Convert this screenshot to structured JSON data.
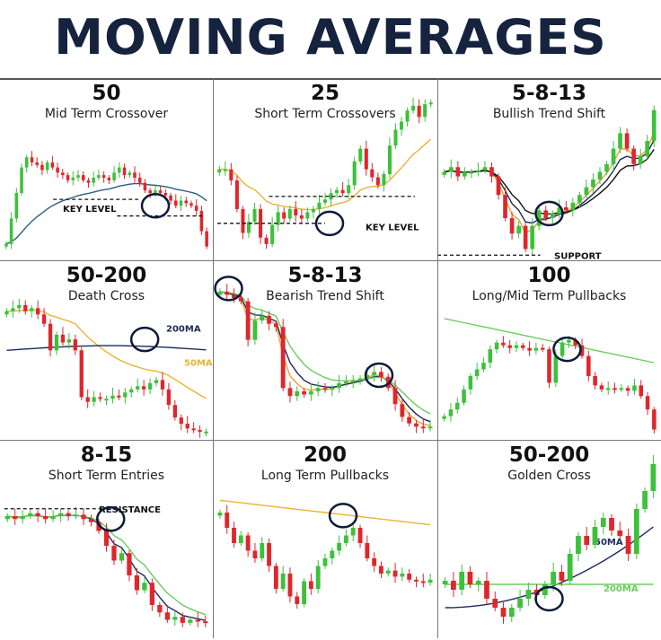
{
  "title": "MOVING AVERAGES",
  "colors": {
    "bull": "#3cc13b",
    "bear": "#e0262b",
    "navy": "#1b2a5e",
    "gold": "#e9b434",
    "green": "#6ccb5f",
    "blue": "#2b5f80",
    "orange": "#f0a030",
    "black": "#111111"
  },
  "chart_data": [
    {
      "type": "candlestick",
      "heading": "50",
      "subtitle": "Mid Term Crossover",
      "moving_averages": [
        "50"
      ],
      "annotations": [
        "KEY LEVEL"
      ],
      "closes": [
        10,
        30,
        50,
        70,
        78,
        74,
        72,
        68,
        74,
        70,
        66,
        64,
        60,
        62,
        64,
        60,
        58,
        62,
        64,
        62,
        60,
        66,
        70,
        64,
        66,
        62,
        58,
        52,
        50,
        52,
        50,
        48,
        44,
        40,
        44,
        42,
        40,
        36,
        20,
        8
      ]
    },
    {
      "type": "candlestick",
      "heading": "25",
      "subtitle": "Short Term Crossovers",
      "moving_averages": [
        "25"
      ],
      "annotations": [
        "KEY LEVEL"
      ],
      "closes": [
        55,
        55,
        48,
        30,
        15,
        22,
        30,
        12,
        8,
        20,
        28,
        24,
        30,
        26,
        24,
        28,
        30,
        34,
        36,
        40,
        42,
        40,
        45,
        60,
        68,
        55,
        50,
        45,
        52,
        70,
        80,
        85,
        92,
        95,
        88,
        96,
        97
      ]
    },
    {
      "type": "candlestick",
      "heading": "5-8-13",
      "subtitle": "Bullish Trend Shift",
      "moving_averages": [
        "5",
        "8",
        "13"
      ],
      "annotations": [
        "SUPPORT"
      ],
      "closes": [
        55,
        58,
        52,
        55,
        55,
        56,
        58,
        52,
        40,
        25,
        15,
        20,
        5,
        20,
        30,
        25,
        28,
        32,
        30,
        35,
        40,
        45,
        50,
        55,
        60,
        70,
        80,
        70,
        60,
        65,
        75,
        95
      ]
    },
    {
      "type": "candlestick",
      "heading": "50-200",
      "subtitle": "Death Cross",
      "moving_averages": [
        "50MA",
        "200MA"
      ],
      "annotations": [
        "200MA",
        "50MA"
      ],
      "closes": [
        80,
        82,
        84,
        80,
        82,
        78,
        72,
        55,
        65,
        60,
        62,
        55,
        25,
        22,
        25,
        24,
        24,
        26,
        25,
        28,
        30,
        32,
        30,
        34,
        36,
        30,
        20,
        12,
        8,
        5,
        4,
        3,
        3
      ]
    },
    {
      "type": "candlestick",
      "heading": "5-8-13",
      "subtitle": "Bearish Trend Shift",
      "moving_averages": [
        "5",
        "8",
        "13"
      ],
      "annotations": [],
      "closes": [
        90,
        88,
        86,
        84,
        60,
        72,
        75,
        70,
        68,
        30,
        25,
        28,
        26,
        28,
        30,
        29,
        30,
        33,
        34,
        35,
        36,
        38,
        40,
        37,
        30,
        20,
        12,
        8,
        6,
        5,
        6
      ]
    },
    {
      "type": "candlestick",
      "heading": "100",
      "subtitle": "Long/Mid Term Pullbacks",
      "moving_averages": [
        "100"
      ],
      "annotations": [],
      "closes": [
        15,
        20,
        25,
        35,
        45,
        50,
        55,
        65,
        70,
        68,
        66,
        68,
        66,
        64,
        66,
        65,
        40,
        60,
        70,
        72,
        68,
        60,
        45,
        38,
        35,
        36,
        35,
        36,
        34,
        38,
        30,
        20,
        5
      ]
    },
    {
      "type": "candlestick",
      "heading": "8-15",
      "subtitle": "Short Term Entries",
      "moving_averages": [
        "8",
        "15"
      ],
      "annotations": [
        "RESISTANCE"
      ],
      "closes": [
        80,
        78,
        80,
        82,
        80,
        78,
        80,
        82,
        80,
        81,
        78,
        76,
        70,
        60,
        50,
        55,
        40,
        30,
        35,
        20,
        15,
        10,
        12,
        8,
        10,
        9,
        8
      ]
    },
    {
      "type": "candlestick",
      "heading": "200",
      "subtitle": "Long Term Pullbacks",
      "moving_averages": [
        "200"
      ],
      "annotations": [],
      "closes": [
        80,
        70,
        60,
        65,
        55,
        50,
        60,
        45,
        30,
        40,
        25,
        20,
        35,
        30,
        45,
        50,
        55,
        60,
        65,
        70,
        60,
        50,
        45,
        40,
        42,
        38,
        40,
        36,
        35,
        34,
        36
      ]
    },
    {
      "type": "candlestick",
      "heading": "50-200",
      "subtitle": "Golden Cross",
      "moving_averages": [
        "50MA",
        "200MA"
      ],
      "annotations": [
        "50MA",
        "200MA"
      ],
      "closes": [
        30,
        25,
        35,
        28,
        30,
        20,
        15,
        10,
        15,
        20,
        25,
        22,
        28,
        35,
        30,
        45,
        55,
        50,
        60,
        65,
        58,
        55,
        45,
        70,
        80,
        95
      ]
    }
  ]
}
